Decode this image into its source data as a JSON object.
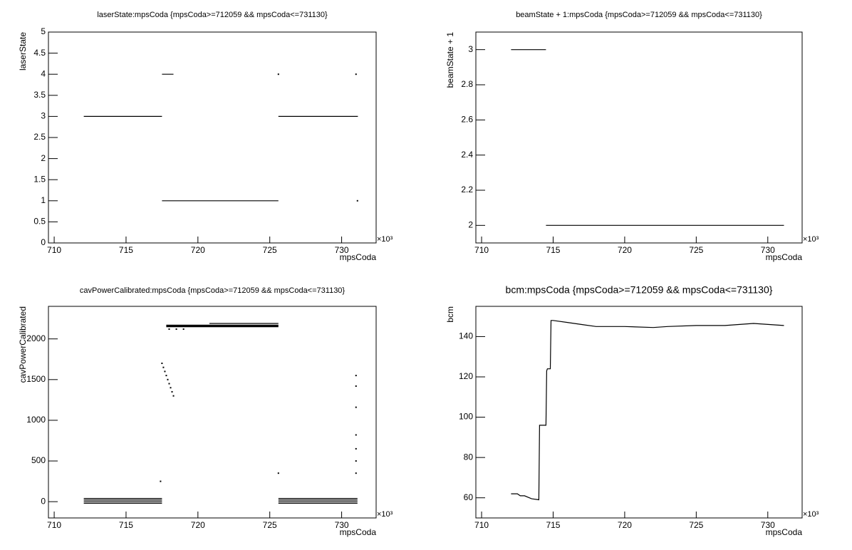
{
  "chart_data": [
    {
      "type": "line",
      "title": "laserState:mpsCoda {mpsCoda>=712059 && mpsCoda<=731130}",
      "x_label": "mpsCoda",
      "y_label": "laserState",
      "x_scale_label": "×10³",
      "xlim": [
        709.6,
        732.4
      ],
      "xticks": [
        710,
        715,
        720,
        725,
        730
      ],
      "ylim": [
        0,
        5
      ],
      "yticks": [
        0,
        0.5,
        1,
        1.5,
        2,
        2.5,
        3,
        3.5,
        4,
        4.5,
        5
      ],
      "color": "#000000",
      "x": [
        712.06,
        717.5,
        null,
        717.5,
        718.3,
        null,
        717.5,
        725.6,
        null,
        725.6,
        731.13,
        null,
        725.6,
        null,
        731.0,
        null,
        731.1
      ],
      "values": [
        3,
        3,
        null,
        4,
        4,
        null,
        1,
        1,
        null,
        3,
        3,
        null,
        4,
        null,
        4,
        null,
        1
      ]
    },
    {
      "type": "line",
      "title": "beamState + 1:mpsCoda {mpsCoda>=712059 && mpsCoda<=731130}",
      "x_label": "mpsCoda",
      "y_label": "beamState + 1",
      "x_scale_label": "×10³",
      "xlim": [
        709.6,
        732.4
      ],
      "xticks": [
        710,
        715,
        720,
        725,
        730
      ],
      "ylim": [
        1.9,
        3.1
      ],
      "yticks": [
        2,
        2.2,
        2.4,
        2.6,
        2.8,
        3
      ],
      "color": "#000000",
      "x": [
        712.06,
        714.5,
        null,
        714.5,
        731.13
      ],
      "values": [
        3,
        3,
        null,
        2,
        2
      ]
    },
    {
      "type": "line",
      "title": "cavPowerCalibrated:mpsCoda {mpsCoda>=712059 && mpsCoda<=731130}",
      "x_label": "mpsCoda",
      "y_label": "cavPowerCalibrated",
      "x_scale_label": "×10³",
      "xlim": [
        709.6,
        732.4
      ],
      "xticks": [
        710,
        715,
        720,
        725,
        730
      ],
      "ylim": [
        -200,
        2400
      ],
      "yticks": [
        0,
        500,
        1000,
        1500,
        2000
      ],
      "color": "#000000",
      "x": [
        712.06,
        717.5,
        null,
        712.06,
        717.5,
        null,
        712.06,
        717.5,
        null,
        712.06,
        717.5,
        null,
        717.8,
        725.6,
        null,
        717.8,
        725.6,
        null,
        717.8,
        725.6,
        null,
        720.8,
        725.6,
        null,
        725.6,
        731.1,
        null,
        725.6,
        731.1,
        null,
        725.6,
        731.1,
        null,
        725.6,
        731.1,
        null,
        717.5,
        null,
        717.6,
        null,
        717.7,
        null,
        717.8,
        null,
        717.9,
        null,
        718.0,
        null,
        718.1,
        null,
        718.2,
        null,
        718.3,
        null,
        731.0,
        null,
        731.0,
        null,
        731.0,
        null,
        731.0,
        null,
        731.0,
        null,
        731.0,
        null,
        731.0,
        null,
        717.4,
        null,
        725.6,
        null,
        718.0,
        null,
        718.5,
        null,
        719.0
      ],
      "values": [
        -20,
        -20,
        null,
        0,
        0,
        null,
        20,
        20,
        null,
        40,
        40,
        null,
        2150,
        2150,
        null,
        2160,
        2160,
        null,
        2170,
        2170,
        null,
        2190,
        2190,
        null,
        -20,
        -20,
        null,
        0,
        0,
        null,
        20,
        20,
        null,
        40,
        40,
        null,
        1700,
        null,
        1650,
        null,
        1600,
        null,
        1550,
        null,
        1500,
        null,
        1450,
        null,
        1400,
        null,
        1350,
        null,
        1300,
        null,
        1550,
        null,
        1420,
        null,
        1160,
        null,
        820,
        null,
        650,
        null,
        500,
        null,
        350,
        null,
        250,
        null,
        350,
        null,
        2120,
        null,
        2120,
        null,
        2120
      ]
    },
    {
      "type": "line",
      "title": "bcm:mpsCoda {mpsCoda>=712059 && mpsCoda<=731130}",
      "x_label": "mpsCoda",
      "y_label": "bcm",
      "x_scale_label": "×10³",
      "xlim": [
        709.6,
        732.4
      ],
      "xticks": [
        710,
        715,
        720,
        725,
        730
      ],
      "ylim": [
        50,
        155
      ],
      "yticks": [
        60,
        80,
        100,
        120,
        140
      ],
      "color": "#000000",
      "x": [
        712.06,
        712.5,
        712.7,
        713.0,
        713.5,
        714.0,
        714.05,
        714.2,
        714.5,
        714.55,
        714.6,
        714.8,
        714.85,
        715.0,
        716.0,
        717.0,
        718.0,
        720.0,
        722.0,
        723.0,
        725.0,
        727.0,
        729.0,
        731.13
      ],
      "values": [
        62,
        62,
        61,
        61,
        59.5,
        59,
        96,
        96,
        96,
        123,
        124,
        124,
        148,
        148,
        147,
        146,
        145,
        145,
        144.5,
        145,
        145.5,
        145.5,
        146.5,
        145.5
      ]
    }
  ]
}
